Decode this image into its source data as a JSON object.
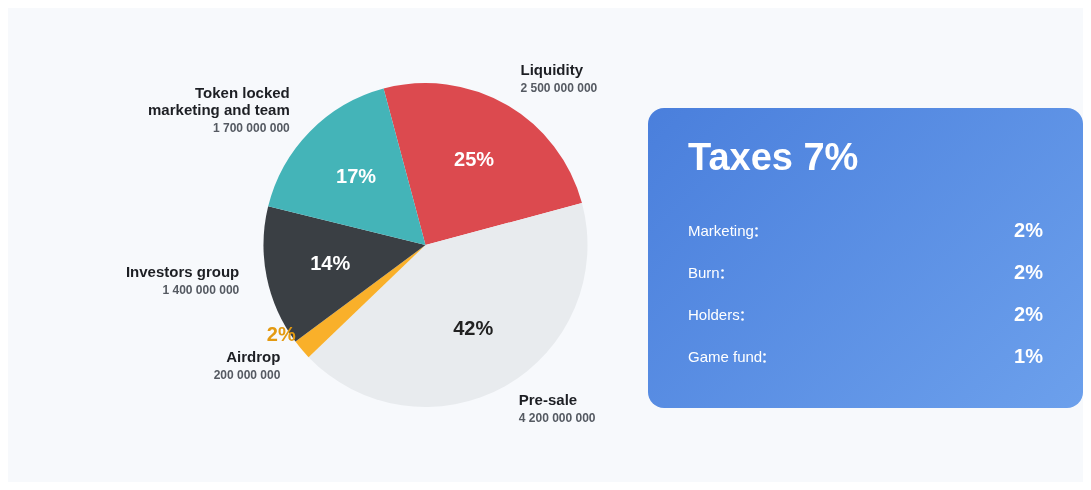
{
  "chart_data": [
    {
      "type": "pie",
      "categories": [
        "Liquidity",
        "Pre-sale",
        "Airdrop",
        "Investors group",
        "Token locked marketing and team"
      ],
      "values": [
        2500000000,
        4200000000,
        200000000,
        1400000000,
        1700000000
      ],
      "value_labels": [
        "2 500 000 000",
        "4 200 000 000",
        "200 000 000",
        "1 400 000 000",
        "1 700 000 000"
      ],
      "annotations": [
        {
          "text": "25%",
          "x": "Liquidity"
        },
        {
          "text": "42%",
          "x": "Pre-sale"
        },
        {
          "text": "2%",
          "x": "Airdrop"
        },
        {
          "text": "14%",
          "x": "Investors group"
        },
        {
          "text": "17%",
          "x": "Token locked marketing and team"
        }
      ],
      "colors": [
        "#dc4a4f",
        "#e8ebee",
        "#f9b02a",
        "#3a3f44",
        "#44b4b8"
      ],
      "legend": false
    },
    {
      "type": "other",
      "title": "Taxes 7%",
      "categories": [
        "Marketing",
        "Burn",
        "Holders",
        "Game fund"
      ],
      "value_labels": [
        "2%",
        "2%",
        "2%",
        "1%"
      ]
    }
  ]
}
